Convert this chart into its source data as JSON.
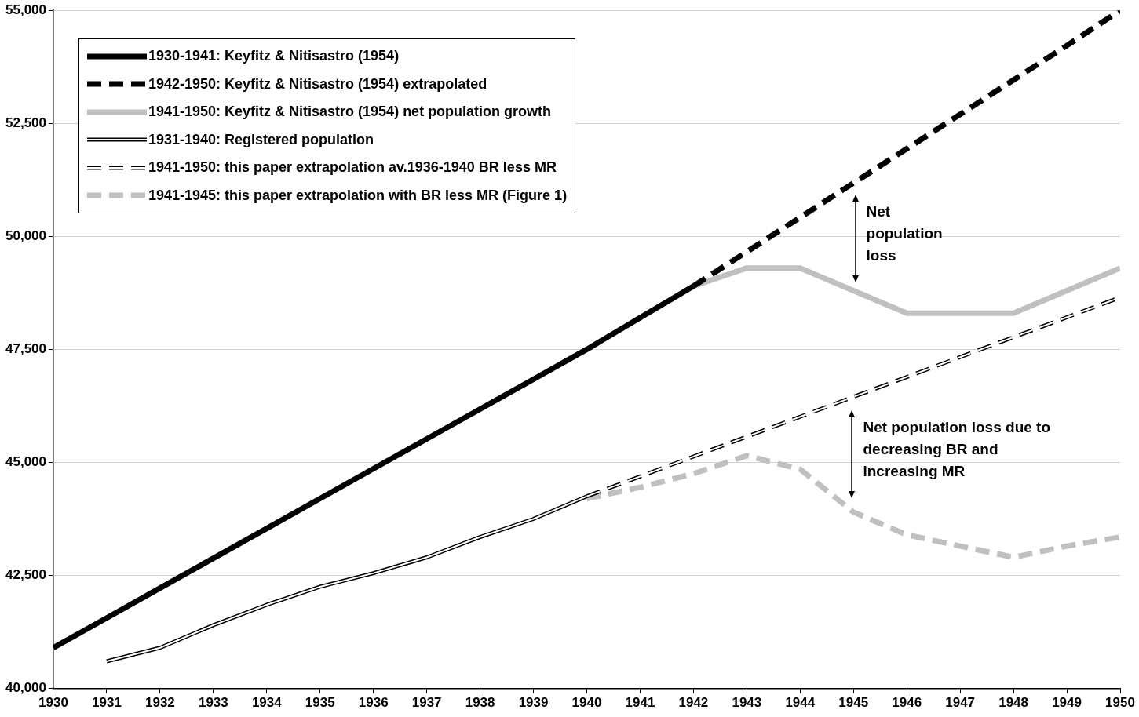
{
  "chart_data": {
    "type": "line",
    "x": [
      1930,
      1931,
      1932,
      1933,
      1934,
      1935,
      1936,
      1937,
      1938,
      1939,
      1940,
      1941,
      1942
    ],
    "xlim": [
      1930,
      1950
    ],
    "xticks": [
      1930,
      1931,
      1932,
      1933,
      1934,
      1935,
      1936,
      1937,
      1938,
      1939,
      1940,
      1941,
      1942,
      1943,
      1944,
      1945,
      1946,
      1947,
      1948,
      1949,
      1950
    ],
    "ylim": [
      40000,
      55000
    ],
    "yticks": [
      {
        "value": 40000,
        "label": "40,000"
      },
      {
        "value": 42500,
        "label": "42,500"
      },
      {
        "value": 45000,
        "label": "45,000"
      },
      {
        "value": 47500,
        "label": "47,500"
      },
      {
        "value": 50000,
        "label": "50,000"
      },
      {
        "value": 52500,
        "label": "52,500"
      },
      {
        "value": 55000,
        "label": "55,000"
      }
    ],
    "grid": "y",
    "legend": "top left",
    "marker": "none",
    "series": [
      {
        "name": "1930-1941: Keyfitz & Nitisastro (1954)",
        "color": "#000000",
        "line_style": "solid",
        "values": [
          40900,
          41560,
          42220,
          42880,
          43540,
          44200,
          44860,
          45520,
          46180,
          46840,
          47500,
          48200,
          48900
        ]
      },
      {
        "name": "1942-1950: Keyfitz & Nitisastro (1954) extrapolated",
        "color": "#000000",
        "line_style": "dashed",
        "x": [
          1942,
          1943,
          1944,
          1945,
          1946,
          1947,
          1948,
          1949,
          1950
        ],
        "values": [
          48900,
          49660,
          50420,
          51180,
          51940,
          52700,
          53460,
          54220,
          55000
        ]
      },
      {
        "name": "1941-1950: Keyfitz & Nitisastro (1954) net population growth",
        "color": "#c0c0c0",
        "line_style": "solid",
        "x": [
          1942,
          1943,
          1944,
          1945,
          1946,
          1947,
          1948,
          1949,
          1950
        ],
        "values": [
          48900,
          49300,
          49300,
          48800,
          48300,
          48300,
          48300,
          48800,
          49300
        ]
      },
      {
        "name": "1931-1940: Registered population",
        "color": "#000000",
        "line_style": "solid",
        "x": [
          1931,
          1932,
          1933,
          1934,
          1935,
          1936,
          1937,
          1938,
          1939,
          1940
        ],
        "values": [
          40600,
          40900,
          41400,
          41850,
          42250,
          42550,
          42900,
          43350,
          43750,
          44250
        ]
      },
      {
        "name": "1941-1950: this paper extrapolation av.1936-1940 BR less MR",
        "color": "#000000",
        "line_style": "dashed",
        "x": [
          1940,
          1941,
          1942,
          1943,
          1944,
          1945,
          1946,
          1947,
          1948,
          1949,
          1950
        ],
        "values": [
          44250,
          44690,
          45130,
          45570,
          46010,
          46450,
          46890,
          47330,
          47770,
          48210,
          48650
        ]
      },
      {
        "name": "1941-1945: this paper extrapolation with BR less MR (Figure 1)",
        "color": "#c0c0c0",
        "line_style": "dashed",
        "x": [
          1940,
          1941,
          1942,
          1943,
          1944,
          1945,
          1946,
          1947,
          1948,
          1949,
          1950
        ],
        "values": [
          44200,
          44450,
          44750,
          45150,
          44850,
          43900,
          43400,
          43150,
          42900,
          43150,
          43350
        ]
      }
    ],
    "annotations": [
      "Net population loss",
      "Net population loss due to decreasing BR and increasing MR"
    ]
  }
}
